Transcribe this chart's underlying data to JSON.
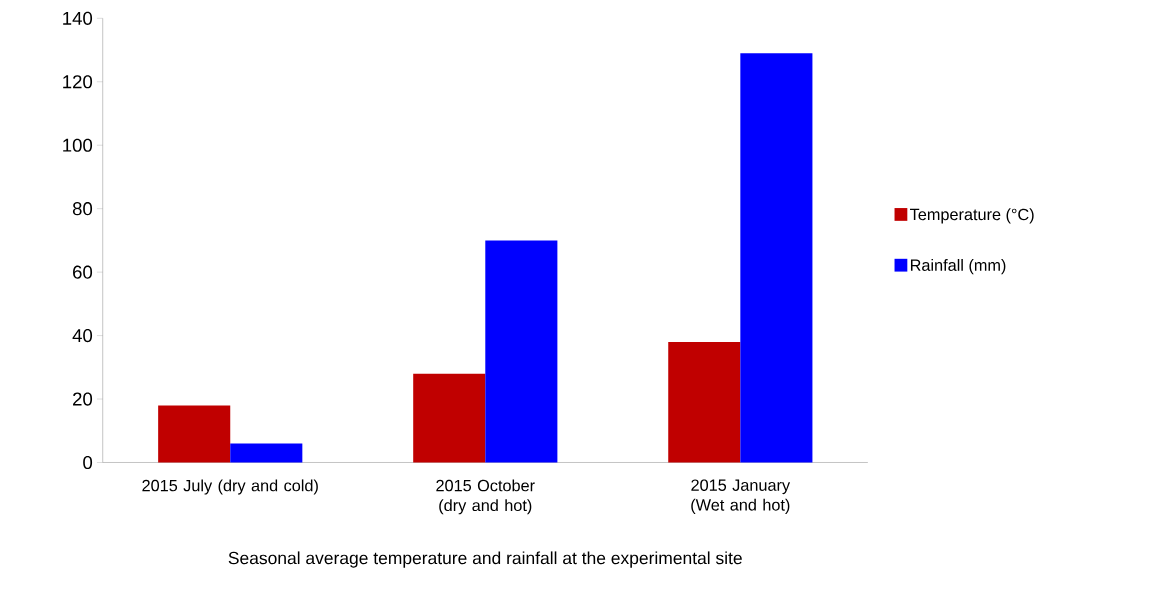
{
  "chart_data": {
    "type": "bar",
    "xlabel": "Seasonal average temperature and rainfall at the experimental site",
    "categories": [
      "2015 July (dry and cold)",
      "2015 October (dry and hot)",
      "2015 January (Wet and hot)"
    ],
    "series": [
      {
        "name": "Temperature (°C)",
        "color": "#c00000",
        "values": [
          18,
          28,
          38
        ]
      },
      {
        "name": "Rainfall (mm)",
        "color": "#0000ff",
        "values": [
          6,
          70,
          129
        ]
      }
    ],
    "ylim": [
      0,
      140
    ],
    "yticks": [
      0,
      20,
      40,
      60,
      80,
      100,
      120,
      140
    ],
    "legend": "right",
    "grid": false
  }
}
